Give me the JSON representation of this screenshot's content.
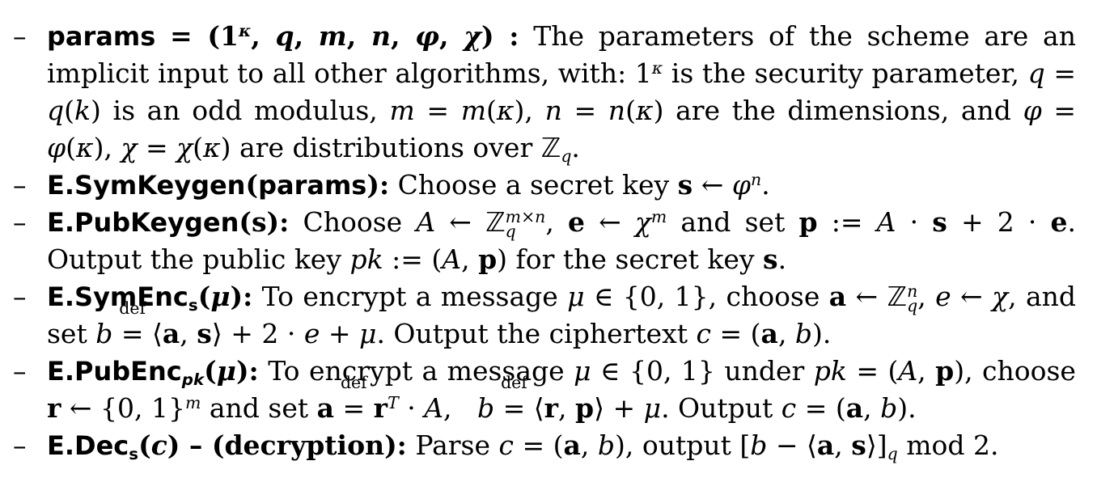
{
  "dash": "–",
  "items": [
    {
      "name": "params = (1^κ, q, m, n, φ, χ) :",
      "text": "The parameters of the scheme are an implicit input to all other algorithms, with: 1^κ is the security parameter, q = q(k) is an odd modulus, m = m(κ), n = n(κ) are the dimensions, and φ = φ(κ), χ = χ(κ) are distributions over ℤ_q."
    },
    {
      "name": "E.SymKeygen(params):",
      "text": "Choose a secret key s ← φ^n."
    },
    {
      "name": "E.PubKeygen(s):",
      "text": "Choose A ← ℤ_q^{m×n}, e ← χ^m and set p := A · s + 2 · e. Output the public key pk := (A, p) for the secret key s."
    },
    {
      "name": "E.SymEnc_s(μ):",
      "text": "To encrypt a message μ ∈ {0, 1}, choose a ← ℤ_q^n, e ← χ, and set b ≝ ⟨a, s⟩ + 2 · e + μ. Output the ciphertext c = (a, b)."
    },
    {
      "name": "E.PubEnc_pk(μ):",
      "text": "To encrypt a message μ ∈ {0, 1} under pk = (A, p), choose r ← {0, 1}^m and set a ≝ r^T · A, b ≝ ⟨r, p⟩ + μ. Output c = (a, b)."
    },
    {
      "name": "E.Dec_s(c) – (decryption):",
      "text": "Parse c = (a, b), output [b − ⟨a, s⟩]_q mod 2."
    }
  ]
}
